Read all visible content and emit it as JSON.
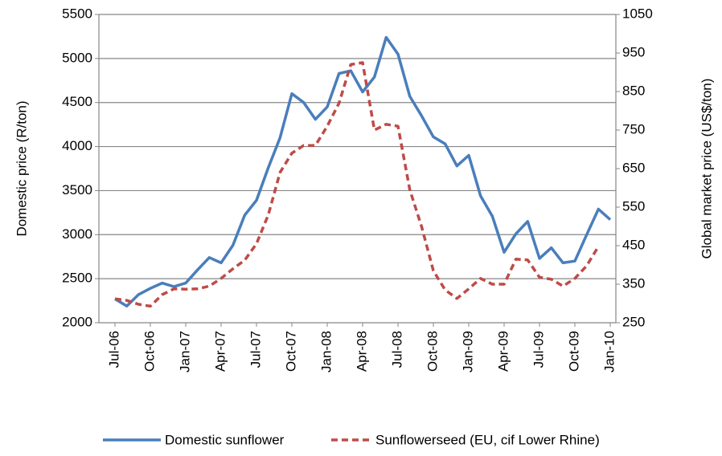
{
  "chart_data": {
    "type": "line",
    "categories": [
      "Jul-06",
      null,
      null,
      "Oct-06",
      null,
      null,
      "Jan-07",
      null,
      null,
      "Apr-07",
      null,
      null,
      "Jul-07",
      null,
      null,
      "Oct-07",
      null,
      null,
      "Jan-08",
      null,
      null,
      "Apr-08",
      null,
      null,
      "Jul-08",
      null,
      null,
      "Oct-08",
      null,
      null,
      "Jan-09",
      null,
      null,
      "Apr-09",
      null,
      null,
      "Jul-09",
      null,
      null,
      "Oct-09",
      null,
      null,
      "Jan-10"
    ],
    "series": [
      {
        "name": "Domestic sunflower",
        "color": "#4a7ebb",
        "dash": false,
        "values": [
          2270,
          2190,
          2320,
          2390,
          2450,
          2410,
          2450,
          2600,
          2740,
          2680,
          2880,
          3220,
          3390,
          3760,
          4100,
          4600,
          4500,
          4310,
          4450,
          4830,
          4860,
          4620,
          4790,
          5240,
          5050,
          4570,
          4350,
          4110,
          4030,
          3780,
          3900,
          3440,
          3210,
          2800,
          3010,
          3150,
          2730,
          2850,
          2680,
          2700,
          3000,
          3290,
          3170
        ]
      },
      {
        "name": "Sunflowerseed (EU, cif Lower Rhine)",
        "color": "#be4b48",
        "dash": true,
        "axis": "y2",
        "values": [
          312,
          308,
          298,
          293,
          323,
          338,
          337,
          338,
          345,
          365,
          390,
          412,
          455,
          530,
          640,
          690,
          710,
          710,
          760,
          820,
          920,
          925,
          750,
          765,
          760,
          595,
          500,
          385,
          335,
          313,
          338,
          365,
          350,
          350,
          415,
          413,
          368,
          363,
          345,
          365,
          398,
          448,
          null
        ]
      }
    ],
    "y_label": "Domestic price (R/ton)",
    "y2_label": "Global market price (US$/ton)",
    "ylim": [
      2000,
      5500
    ],
    "yticks": [
      2000,
      2500,
      3000,
      3500,
      4000,
      4500,
      5000,
      5500
    ],
    "y2lim": [
      250,
      1050
    ],
    "y2ticks": [
      250,
      350,
      450,
      550,
      650,
      750,
      850,
      950,
      1050
    ],
    "grid": true,
    "legend": "bottom"
  }
}
